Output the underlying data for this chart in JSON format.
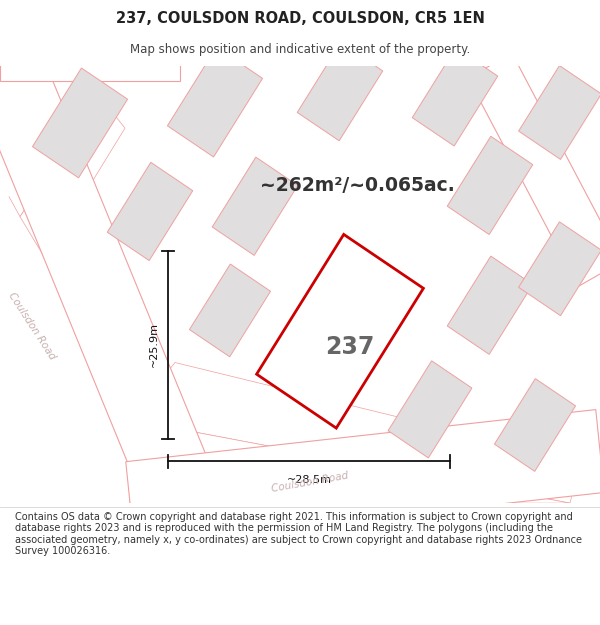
{
  "title_line1": "237, COULSDON ROAD, COULSDON, CR5 1EN",
  "title_line2": "Map shows position and indicative extent of the property.",
  "area_text": "~262m²/~0.065ac.",
  "property_number": "237",
  "dim_width": "~28.5m",
  "dim_height": "~25.9m",
  "road_label_left": "Coulsdon Road",
  "road_label_bottom": "Coulsdon Road",
  "footer_text": "Contains OS data © Crown copyright and database right 2021. This information is subject to Crown copyright and database rights 2023 and is reproduced with the permission of HM Land Registry. The polygons (including the associated geometry, namely x, y co-ordinates) are subject to Crown copyright and database rights 2023 Ordnance Survey 100026316.",
  "map_bg": "#f7f4f4",
  "road_color": "#ffffff",
  "road_line_color": "#f0a0a0",
  "building_fill": "#e0dede",
  "building_edge_color": "#f0a0a0",
  "highlight_fill": "#ffffff",
  "highlight_edge": "#cc0000",
  "road_text_color": "#c8b0b0",
  "title_color": "#222222",
  "subtitle_color": "#444444",
  "footer_color": "#333333",
  "dim_color": "#111111"
}
